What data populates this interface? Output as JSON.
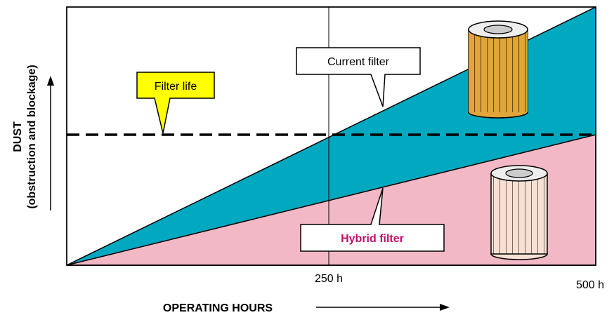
{
  "axis": {
    "y_label": "DUST",
    "y_sublabel": "(obstruction and blockage)",
    "x_label": "OPERATING HOURS",
    "x_ticks": [
      "250 h",
      "500 h"
    ]
  },
  "callouts": {
    "current": "Current filter",
    "life": "Filter life",
    "hybrid": "Hybrid filter"
  }
}
